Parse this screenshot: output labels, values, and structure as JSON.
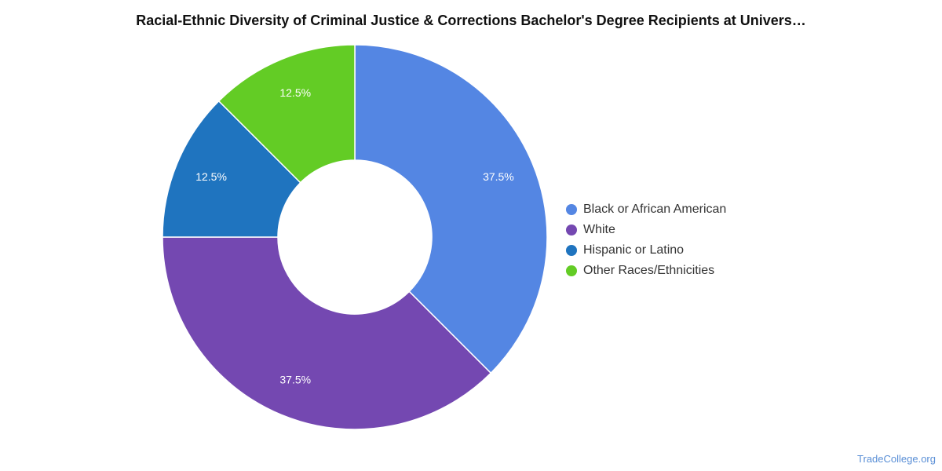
{
  "chart_data": {
    "type": "pie",
    "title": "Racial-Ethnic Diversity of Criminal Justice & Corrections Bachelor's Degree Recipients at Univers…",
    "donut": true,
    "start_angle_deg": 0,
    "direction": "clockwise",
    "legend_position": "right",
    "slices": [
      {
        "label": "Black or African American",
        "value": 37.5,
        "display": "37.5%",
        "color": "#5486e3"
      },
      {
        "label": "White",
        "value": 37.5,
        "display": "37.5%",
        "color": "#7448b1"
      },
      {
        "label": "Hispanic or Latino",
        "value": 12.5,
        "display": "12.5%",
        "color": "#1f74bf"
      },
      {
        "label": "Other Races/Ethnicities",
        "value": 12.5,
        "display": "12.5%",
        "color": "#63cc25"
      }
    ]
  },
  "footer": {
    "credit": "TradeCollege.org"
  }
}
